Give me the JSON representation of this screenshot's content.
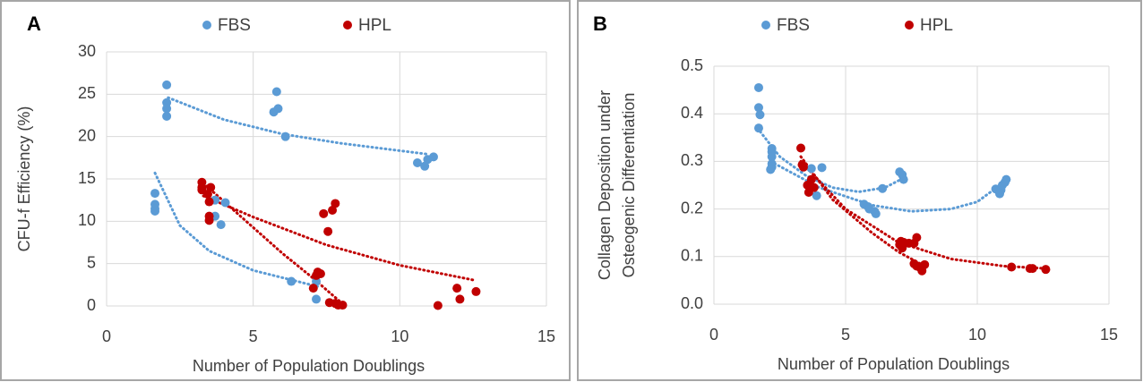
{
  "chart_data": [
    {
      "type": "scatter",
      "panel": "A",
      "xlabel": "Number of Population Doublings",
      "ylabel": "CFU-f Efficiency (%)",
      "xlim": [
        0,
        15
      ],
      "xticks": [
        0,
        5,
        10,
        15
      ],
      "ylim": [
        0,
        30
      ],
      "yticks": [
        0,
        5,
        10,
        15,
        20,
        25,
        30
      ],
      "grid": true,
      "series": [
        {
          "name": "FBS",
          "color": "#5b9bd5",
          "x": [
            2.05,
            2.05,
            2.05,
            2.05,
            5.8,
            5.85,
            5.7,
            6.1,
            10.6,
            10.85,
            10.95,
            11.15,
            1.65,
            1.65,
            1.65,
            1.65,
            3.7,
            3.7,
            4.05,
            3.9,
            6.3,
            7.15,
            7.15
          ],
          "y": [
            26.1,
            24,
            23.3,
            22.4,
            25.3,
            23.3,
            22.9,
            20,
            16.9,
            16.5,
            17.3,
            17.6,
            13.3,
            12,
            11.5,
            11.2,
            12.5,
            10.6,
            12.2,
            9.6,
            2.9,
            2.9,
            0.8
          ]
        },
        {
          "name": "HPL",
          "color": "#c00000",
          "x": [
            3.25,
            3.25,
            3.25,
            3.55,
            3.5,
            3.5,
            3.5,
            3.45,
            7.2,
            7.15,
            7.3,
            7.05,
            7.4,
            7.55,
            7.7,
            7.8,
            7.6,
            7.8,
            7.9,
            8.05,
            11.3,
            11.95,
            12.05,
            12.6
          ],
          "y": [
            14.6,
            14,
            13.7,
            14,
            12.3,
            10.6,
            10.1,
            13.2,
            4,
            3.6,
            3.8,
            2.1,
            10.9,
            8.8,
            11.3,
            12.1,
            0.4,
            0.3,
            0.1,
            0.1,
            0.05,
            2.1,
            0.8,
            1.7
          ]
        }
      ],
      "trendlines": [
        {
          "color": "#5b9bd5",
          "x": [
            2.1,
            4,
            6,
            8,
            11
          ],
          "y": [
            24.6,
            22,
            20.3,
            19.2,
            17.9
          ]
        },
        {
          "color": "#5b9bd5",
          "x": [
            1.65,
            2.5,
            3.5,
            5,
            7.2
          ],
          "y": [
            15.7,
            9.5,
            6.5,
            4.2,
            2.3
          ]
        },
        {
          "color": "#c00000",
          "x": [
            3.3,
            5,
            7.5,
            10,
            12.6
          ],
          "y": [
            13,
            10.5,
            7.2,
            4.8,
            3
          ]
        },
        {
          "color": "#c00000",
          "x": [
            3.3,
            4.5,
            6,
            7,
            8
          ],
          "y": [
            14.5,
            10.8,
            6.2,
            3.4,
            0.4
          ]
        }
      ]
    },
    {
      "type": "scatter",
      "panel": "B",
      "xlabel": "Number of Population Doublings",
      "ylabel": [
        "Collagen Deposition under",
        "Osteogenic Differentiation"
      ],
      "xlim": [
        0,
        15
      ],
      "xticks": [
        0,
        5,
        10,
        15
      ],
      "ylim": [
        0,
        0.5
      ],
      "yticks": [
        {
          "value": 0,
          "label": "0.0"
        },
        0.1,
        0.2,
        0.3,
        0.4,
        0.5
      ],
      "grid": true,
      "series": [
        {
          "name": "FBS",
          "color": "#5b9bd5",
          "x": [
            1.7,
            1.7,
            1.75,
            1.7,
            2.2,
            2.2,
            2.2,
            2.2,
            2.2,
            2.15,
            3.7,
            4.1,
            3.9,
            5.7,
            5.85,
            5.9,
            6.1,
            6.15,
            6.4,
            7.05,
            7.15,
            7.2,
            10.7,
            10.85,
            10.9,
            10.95,
            11.05,
            11.1,
            10.85
          ],
          "y": [
            0.455,
            0.413,
            0.398,
            0.37,
            0.327,
            0.32,
            0.31,
            0.295,
            0.288,
            0.283,
            0.285,
            0.287,
            0.228,
            0.21,
            0.205,
            0.2,
            0.195,
            0.19,
            0.243,
            0.278,
            0.272,
            0.262,
            0.242,
            0.235,
            0.24,
            0.25,
            0.256,
            0.262,
            0.232
          ]
        },
        {
          "name": "HPL",
          "color": "#c00000",
          "x": [
            3.3,
            3.35,
            3.4,
            3.55,
            3.6,
            3.7,
            3.8,
            7.05,
            7.1,
            7.15,
            7.2,
            7.4,
            7.6,
            7.7,
            7.6,
            7.7,
            7.8,
            7.9,
            8,
            11.3,
            12,
            12.1,
            12.6
          ],
          "y": [
            0.328,
            0.293,
            0.288,
            0.25,
            0.235,
            0.262,
            0.245,
            0.125,
            0.132,
            0.118,
            0.13,
            0.128,
            0.128,
            0.14,
            0.085,
            0.08,
            0.078,
            0.07,
            0.083,
            0.078,
            0.075,
            0.075,
            0.073
          ]
        }
      ],
      "trendlines": [
        {
          "color": "#5b9bd5",
          "x": [
            1.65,
            2.5,
            3.5,
            4.5,
            5.5,
            6.5,
            7.2
          ],
          "y": [
            0.37,
            0.31,
            0.27,
            0.245,
            0.236,
            0.245,
            0.265
          ]
        },
        {
          "color": "#5b9bd5",
          "x": [
            2.15,
            4,
            6,
            7.5,
            9,
            10,
            11.1
          ],
          "y": [
            0.3,
            0.245,
            0.208,
            0.195,
            0.2,
            0.215,
            0.26
          ]
        },
        {
          "color": "#c00000",
          "x": [
            3.3,
            5,
            7,
            9,
            11,
            12.6
          ],
          "y": [
            0.3,
            0.2,
            0.13,
            0.095,
            0.08,
            0.075
          ]
        },
        {
          "color": "#c00000",
          "x": [
            3.3,
            4.5,
            6,
            7,
            8
          ],
          "y": [
            0.31,
            0.22,
            0.15,
            0.11,
            0.08
          ]
        }
      ]
    }
  ]
}
